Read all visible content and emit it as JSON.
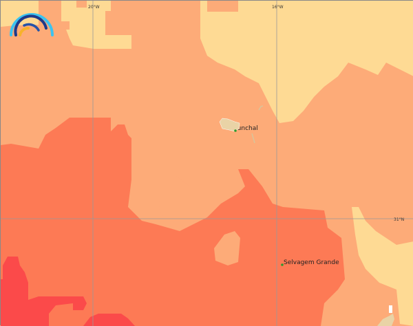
{
  "colors": {
    "level_1": "#FEDA94",
    "level_2": "#FDAB78",
    "level_3": "#FD7A55",
    "level_4": "#FB4A4A",
    "land": "#E9D3A6",
    "gridline": "#999999",
    "place_marker": "#2E9A2E"
  },
  "gridlines": {
    "lon_labels": [
      "20°W",
      "16°W"
    ],
    "lat_labels": [
      "31°N"
    ]
  },
  "places": [
    {
      "name": "Funchal"
    },
    {
      "name": "Selvagem Grande"
    }
  ],
  "logo": {
    "icon": "rainbow-arcs-logo-icon"
  }
}
